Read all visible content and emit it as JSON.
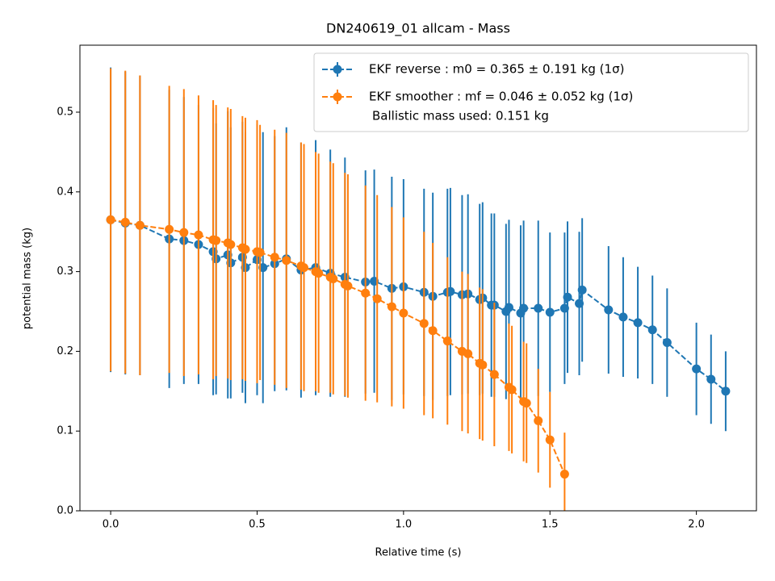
{
  "chart_data": {
    "type": "errorbar",
    "title": "DN240619_01 allcam - Mass",
    "xlabel": "Relative time (s)",
    "ylabel": "potential mass (kg)",
    "xlim": [
      -0.105,
      2.205
    ],
    "ylim": [
      0,
      0.584
    ],
    "xticks": [
      {
        "value": 0,
        "label": "0.0"
      },
      0.5,
      {
        "value": 1,
        "label": "1.0"
      },
      1.5,
      {
        "value": 2,
        "label": "2.0"
      }
    ],
    "yticks": [
      {
        "value": 0,
        "label": "0.0"
      },
      0.1,
      0.2,
      0.3,
      0.4,
      0.5
    ],
    "legend": "upper right",
    "legend_note": "Ballistic mass used: 0.151 kg",
    "series": [
      {
        "name": "EKF reverse : m0 =  0.365 ± 0.191 kg (1σ)",
        "color": "#1f77b4",
        "x": [
          0,
          0.05,
          0.1,
          0.2,
          0.25,
          0.3,
          0.35,
          0.36,
          0.4,
          0.41,
          0.45,
          0.46,
          0.5,
          0.52,
          0.56,
          0.6,
          0.65,
          0.7,
          0.75,
          0.8,
          0.87,
          0.9,
          0.96,
          1.0,
          1.07,
          1.1,
          1.15,
          1.16,
          1.2,
          1.22,
          1.26,
          1.27,
          1.3,
          1.31,
          1.35,
          1.36,
          1.4,
          1.41,
          1.46,
          1.5,
          1.55,
          1.56,
          1.6,
          1.61,
          1.7,
          1.75,
          1.8,
          1.85,
          1.9,
          2.0,
          2.05,
          2.1
        ],
        "values": [
          0.365,
          0.361,
          0.358,
          0.341,
          0.339,
          0.334,
          0.325,
          0.316,
          0.321,
          0.311,
          0.318,
          0.305,
          0.315,
          0.305,
          0.31,
          0.316,
          0.302,
          0.305,
          0.298,
          0.293,
          0.287,
          0.288,
          0.279,
          0.281,
          0.274,
          0.269,
          0.274,
          0.275,
          0.271,
          0.272,
          0.265,
          0.267,
          0.258,
          0.258,
          0.25,
          0.255,
          0.248,
          0.254,
          0.254,
          0.249,
          0.254,
          0.268,
          0.26,
          0.277,
          0.252,
          0.243,
          0.236,
          0.227,
          0.211,
          0.178,
          0.165,
          0.15
        ],
        "errors": [
          0.191,
          0.19,
          0.188,
          0.187,
          0.18,
          0.175,
          0.18,
          0.17,
          0.18,
          0.17,
          0.17,
          0.17,
          0.17,
          0.17,
          0.16,
          0.165,
          0.16,
          0.16,
          0.155,
          0.15,
          0.14,
          0.14,
          0.14,
          0.135,
          0.13,
          0.13,
          0.13,
          0.13,
          0.125,
          0.125,
          0.12,
          0.12,
          0.115,
          0.115,
          0.11,
          0.11,
          0.11,
          0.11,
          0.11,
          0.1,
          0.095,
          0.095,
          0.09,
          0.09,
          0.08,
          0.075,
          0.07,
          0.068,
          0.068,
          0.058,
          0.056,
          0.05
        ]
      },
      {
        "name": "EKF smoother : mf =  0.046 ± 0.052 kg (1σ)",
        "color": "#ff7f0e",
        "x": [
          0,
          0.05,
          0.1,
          0.2,
          0.25,
          0.3,
          0.35,
          0.36,
          0.4,
          0.41,
          0.45,
          0.46,
          0.5,
          0.51,
          0.56,
          0.6,
          0.65,
          0.66,
          0.7,
          0.71,
          0.75,
          0.76,
          0.8,
          0.81,
          0.87,
          0.91,
          0.96,
          1.0,
          1.07,
          1.1,
          1.15,
          1.2,
          1.22,
          1.26,
          1.27,
          1.31,
          1.36,
          1.37,
          1.41,
          1.42,
          1.46,
          1.5,
          1.55
        ],
        "values": [
          0.365,
          0.362,
          0.358,
          0.353,
          0.349,
          0.346,
          0.34,
          0.339,
          0.336,
          0.334,
          0.33,
          0.328,
          0.325,
          0.324,
          0.318,
          0.314,
          0.307,
          0.305,
          0.3,
          0.298,
          0.293,
          0.291,
          0.284,
          0.282,
          0.273,
          0.266,
          0.256,
          0.248,
          0.235,
          0.226,
          0.213,
          0.2,
          0.197,
          0.185,
          0.183,
          0.171,
          0.155,
          0.152,
          0.137,
          0.135,
          0.113,
          0.089,
          0.046
        ],
        "errors": [
          0.19,
          0.19,
          0.188,
          0.18,
          0.18,
          0.175,
          0.175,
          0.17,
          0.17,
          0.17,
          0.165,
          0.165,
          0.165,
          0.16,
          0.16,
          0.16,
          0.155,
          0.155,
          0.15,
          0.15,
          0.145,
          0.145,
          0.14,
          0.14,
          0.135,
          0.13,
          0.125,
          0.12,
          0.115,
          0.11,
          0.105,
          0.1,
          0.1,
          0.095,
          0.095,
          0.09,
          0.08,
          0.08,
          0.075,
          0.075,
          0.065,
          0.06,
          0.052
        ]
      }
    ]
  }
}
